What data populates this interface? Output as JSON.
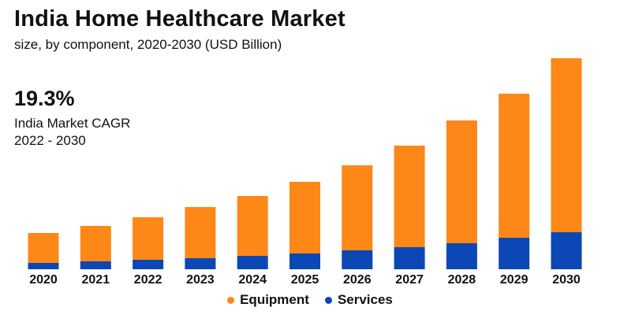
{
  "header": {
    "title": "India Home Healthcare Market",
    "subtitle": "size, by component, 2020-2030 (USD Billion)"
  },
  "cagr": {
    "value": "19.3%",
    "label_line1": "India Market CAGR",
    "label_line2": "2022 - 2030"
  },
  "colors": {
    "equipment": "#FD8717",
    "services": "#0B47B5",
    "text": "#111111"
  },
  "legend": {
    "equipment": "Equipment",
    "services": "Services"
  },
  "chart_data": {
    "type": "bar",
    "stacked": true,
    "title": "India Home Healthcare Market",
    "subtitle": "size, by component, 2020-2030 (USD Billion)",
    "xlabel": "",
    "ylabel": "",
    "ylim": [
      0,
      27
    ],
    "grid": false,
    "legend_position": "bottom-center",
    "categories": [
      "2020",
      "2021",
      "2022",
      "2023",
      "2024",
      "2025",
      "2026",
      "2027",
      "2028",
      "2029",
      "2030"
    ],
    "series": [
      {
        "name": "Services",
        "values": [
          0.8,
          1.0,
          1.2,
          1.4,
          1.7,
          2.0,
          2.4,
          2.8,
          3.3,
          4.0,
          4.7
        ]
      },
      {
        "name": "Equipment",
        "values": [
          3.8,
          4.5,
          5.4,
          6.5,
          7.6,
          9.1,
          10.8,
          12.9,
          15.6,
          18.3,
          22.1
        ]
      }
    ]
  }
}
